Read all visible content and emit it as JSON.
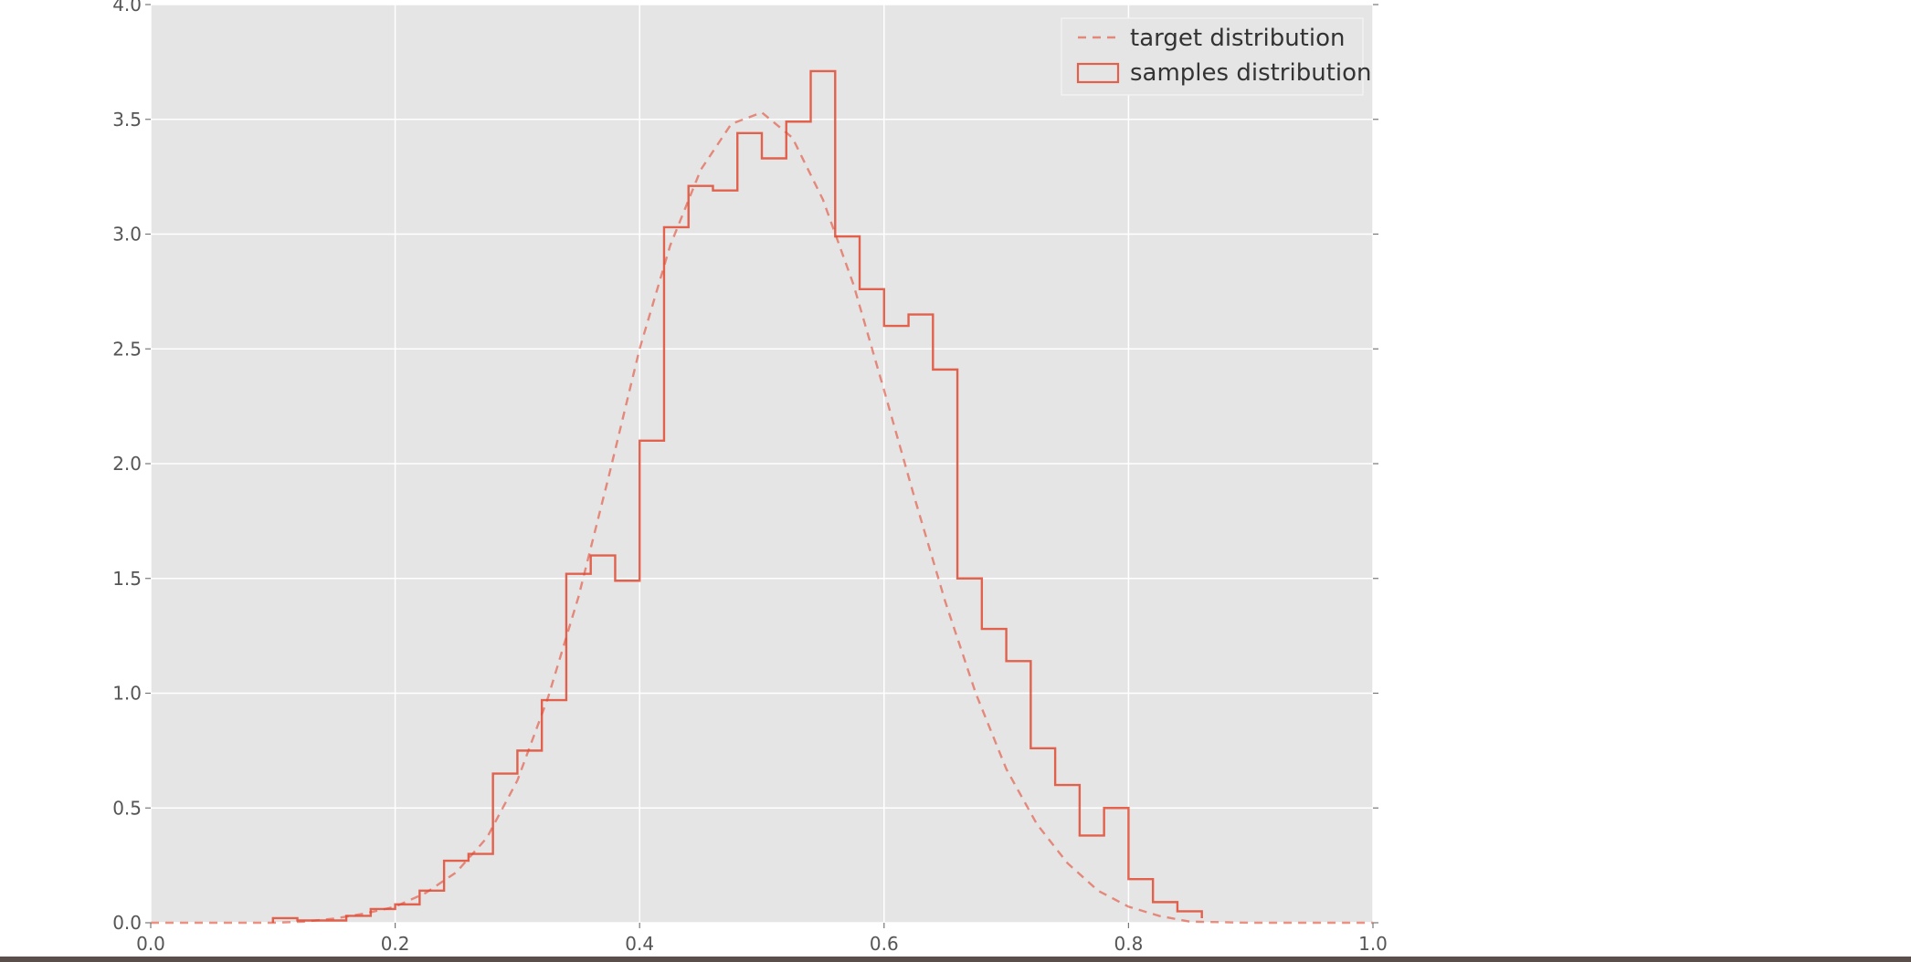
{
  "colors": {
    "plot_background": "#e5e5e5",
    "grid": "#ffffff",
    "series": "#e24a33",
    "figure_background": "#ffffff",
    "tick_text": "#555555"
  },
  "chart_data": {
    "type": "line",
    "title": "",
    "xlabel": "",
    "ylabel": "",
    "xlim": [
      0.0,
      1.0
    ],
    "ylim": [
      0.0,
      4.0
    ],
    "xticks": [
      "0.0",
      "0.2",
      "0.4",
      "0.6",
      "0.8",
      "1.0"
    ],
    "yticks": [
      "0.0",
      "0.5",
      "1.0",
      "1.5",
      "2.0",
      "2.5",
      "3.0",
      "3.5",
      "4.0"
    ],
    "grid": true,
    "legend_position": "top-right",
    "series": [
      {
        "name": "target distribution",
        "kind": "dashed-line",
        "x": [
          0.0,
          0.05,
          0.1,
          0.125,
          0.15,
          0.175,
          0.2,
          0.225,
          0.25,
          0.275,
          0.3,
          0.325,
          0.35,
          0.375,
          0.4,
          0.425,
          0.45,
          0.475,
          0.5,
          0.525,
          0.55,
          0.575,
          0.6,
          0.625,
          0.65,
          0.675,
          0.7,
          0.725,
          0.75,
          0.775,
          0.8,
          0.825,
          0.85,
          0.9,
          0.95,
          1.0
        ],
        "y": [
          0.0,
          0.0,
          0.0,
          0.005,
          0.018,
          0.04,
          0.07,
          0.13,
          0.22,
          0.37,
          0.62,
          0.98,
          1.42,
          1.95,
          2.5,
          2.95,
          3.28,
          3.48,
          3.53,
          3.42,
          3.15,
          2.78,
          2.32,
          1.85,
          1.4,
          1.0,
          0.67,
          0.43,
          0.26,
          0.14,
          0.07,
          0.03,
          0.005,
          0.0,
          0.0,
          0.0
        ]
      },
      {
        "name": "samples distribution",
        "kind": "step-histogram",
        "bin_edges": [
          0.1,
          0.12,
          0.14,
          0.16,
          0.18,
          0.2,
          0.22,
          0.24,
          0.26,
          0.28,
          0.3,
          0.32,
          0.34,
          0.36,
          0.38,
          0.4,
          0.42,
          0.44,
          0.46,
          0.48,
          0.5,
          0.52,
          0.54,
          0.56,
          0.58,
          0.6,
          0.62,
          0.64,
          0.66,
          0.68,
          0.7,
          0.72,
          0.74,
          0.76,
          0.78,
          0.8,
          0.82,
          0.84,
          0.86
        ],
        "values": [
          0.02,
          0.01,
          0.01,
          0.03,
          0.06,
          0.08,
          0.14,
          0.27,
          0.3,
          0.65,
          0.75,
          0.97,
          1.52,
          1.6,
          1.49,
          2.1,
          3.03,
          3.21,
          3.19,
          3.44,
          3.33,
          3.49,
          3.71,
          2.99,
          2.76,
          2.6,
          2.65,
          2.41,
          1.5,
          1.28,
          1.14,
          0.76,
          0.6,
          0.38,
          0.5,
          0.19,
          0.09,
          0.05,
          0.02
        ]
      }
    ]
  }
}
